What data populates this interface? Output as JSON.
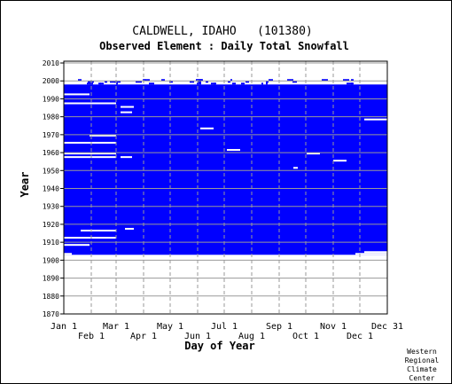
{
  "chart_data": {
    "type": "heatmap",
    "title": "CALDWELL, IDAHO   (101380)",
    "subtitle": "Observed Element : Daily Total Snowfall",
    "xlabel": "Day of Year",
    "ylabel": "Year",
    "x_ticks_upper": [
      "Jan 1",
      "Mar 1",
      "May 1",
      "Jul 1",
      "Sep 1",
      "Nov 1",
      "Dec 31"
    ],
    "x_ticks_lower": [
      "Feb 1",
      "Apr 1",
      "Jun 1",
      "Aug 1",
      "Oct 1",
      "Dec 1"
    ],
    "y_ticks": [
      2010,
      2000,
      1990,
      1980,
      1970,
      1960,
      1950,
      1940,
      1930,
      1920,
      1910,
      1900,
      1890,
      1880,
      1870
    ],
    "ylim": [
      1870,
      2011
    ],
    "xlim": [
      1,
      366
    ],
    "grid": true,
    "data_color": "#0000ff",
    "coverage": {
      "start_year": 1903,
      "end_year": 1997,
      "partial_years": [
        1998,
        1999,
        2000
      ],
      "description": "Nearly continuous daily snowfall records, with scattered missing days and multi-day gaps"
    },
    "gaps": [
      {
        "year": 1903,
        "start_day": 1,
        "end_day": 10
      },
      {
        "year": 1903,
        "start_day": 330,
        "end_day": 366
      },
      {
        "year": 1904,
        "start_day": 340,
        "end_day": 366
      },
      {
        "year": 1908,
        "start_day": 1,
        "end_day": 30
      },
      {
        "year": 1912,
        "start_day": 1,
        "end_day": 60
      },
      {
        "year": 1916,
        "start_day": 20,
        "end_day": 60
      },
      {
        "year": 1917,
        "start_day": 70,
        "end_day": 80
      },
      {
        "year": 1951,
        "start_day": 260,
        "end_day": 265
      },
      {
        "year": 1955,
        "start_day": 305,
        "end_day": 320
      },
      {
        "year": 1957,
        "start_day": 1,
        "end_day": 60
      },
      {
        "year": 1957,
        "start_day": 65,
        "end_day": 78
      },
      {
        "year": 1959,
        "start_day": 1,
        "end_day": 60
      },
      {
        "year": 1959,
        "start_day": 275,
        "end_day": 290
      },
      {
        "year": 1961,
        "start_day": 185,
        "end_day": 200
      },
      {
        "year": 1965,
        "start_day": 1,
        "end_day": 60
      },
      {
        "year": 1969,
        "start_day": 30,
        "end_day": 60
      },
      {
        "year": 1973,
        "start_day": 155,
        "end_day": 170
      },
      {
        "year": 1978,
        "start_day": 340,
        "end_day": 366
      },
      {
        "year": 1982,
        "start_day": 65,
        "end_day": 78
      },
      {
        "year": 1985,
        "start_day": 65,
        "end_day": 80
      },
      {
        "year": 1987,
        "start_day": 1,
        "end_day": 60
      },
      {
        "year": 1992,
        "start_day": 1,
        "end_day": 30
      }
    ]
  },
  "credit": [
    "Western",
    "Regional",
    "Climate",
    "Center"
  ]
}
